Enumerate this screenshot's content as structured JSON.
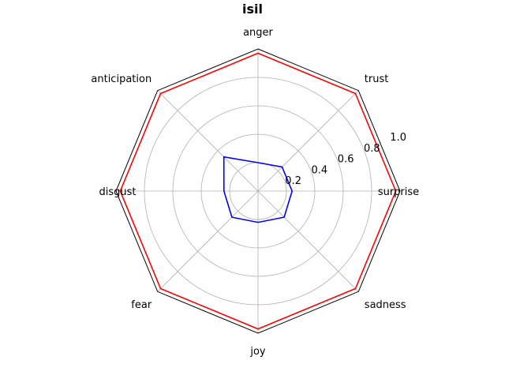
{
  "chart_data": {
    "type": "radar",
    "title": "isil",
    "categories": [
      "anger",
      "trust",
      "surprise",
      "sadness",
      "joy",
      "fear",
      "disgust",
      "anticipation"
    ],
    "rlim": [
      0,
      1.0
    ],
    "ticks": [
      0.2,
      0.4,
      0.6,
      0.8,
      1.0
    ],
    "tick_labels": [
      "0.2",
      "0.4",
      "0.6",
      "0.8",
      "1.0"
    ],
    "grid": true,
    "series": [
      {
        "color": "#ff0000",
        "values": [
          0.97,
          0.97,
          0.97,
          0.97,
          0.97,
          0.97,
          0.97,
          0.97
        ]
      },
      {
        "color": "#0000ff",
        "values": [
          0.2,
          0.24,
          0.24,
          0.26,
          0.22,
          0.26,
          0.24,
          0.34
        ]
      }
    ],
    "colors": {
      "frame": "#000000",
      "grid": "#b0b0b0"
    }
  }
}
